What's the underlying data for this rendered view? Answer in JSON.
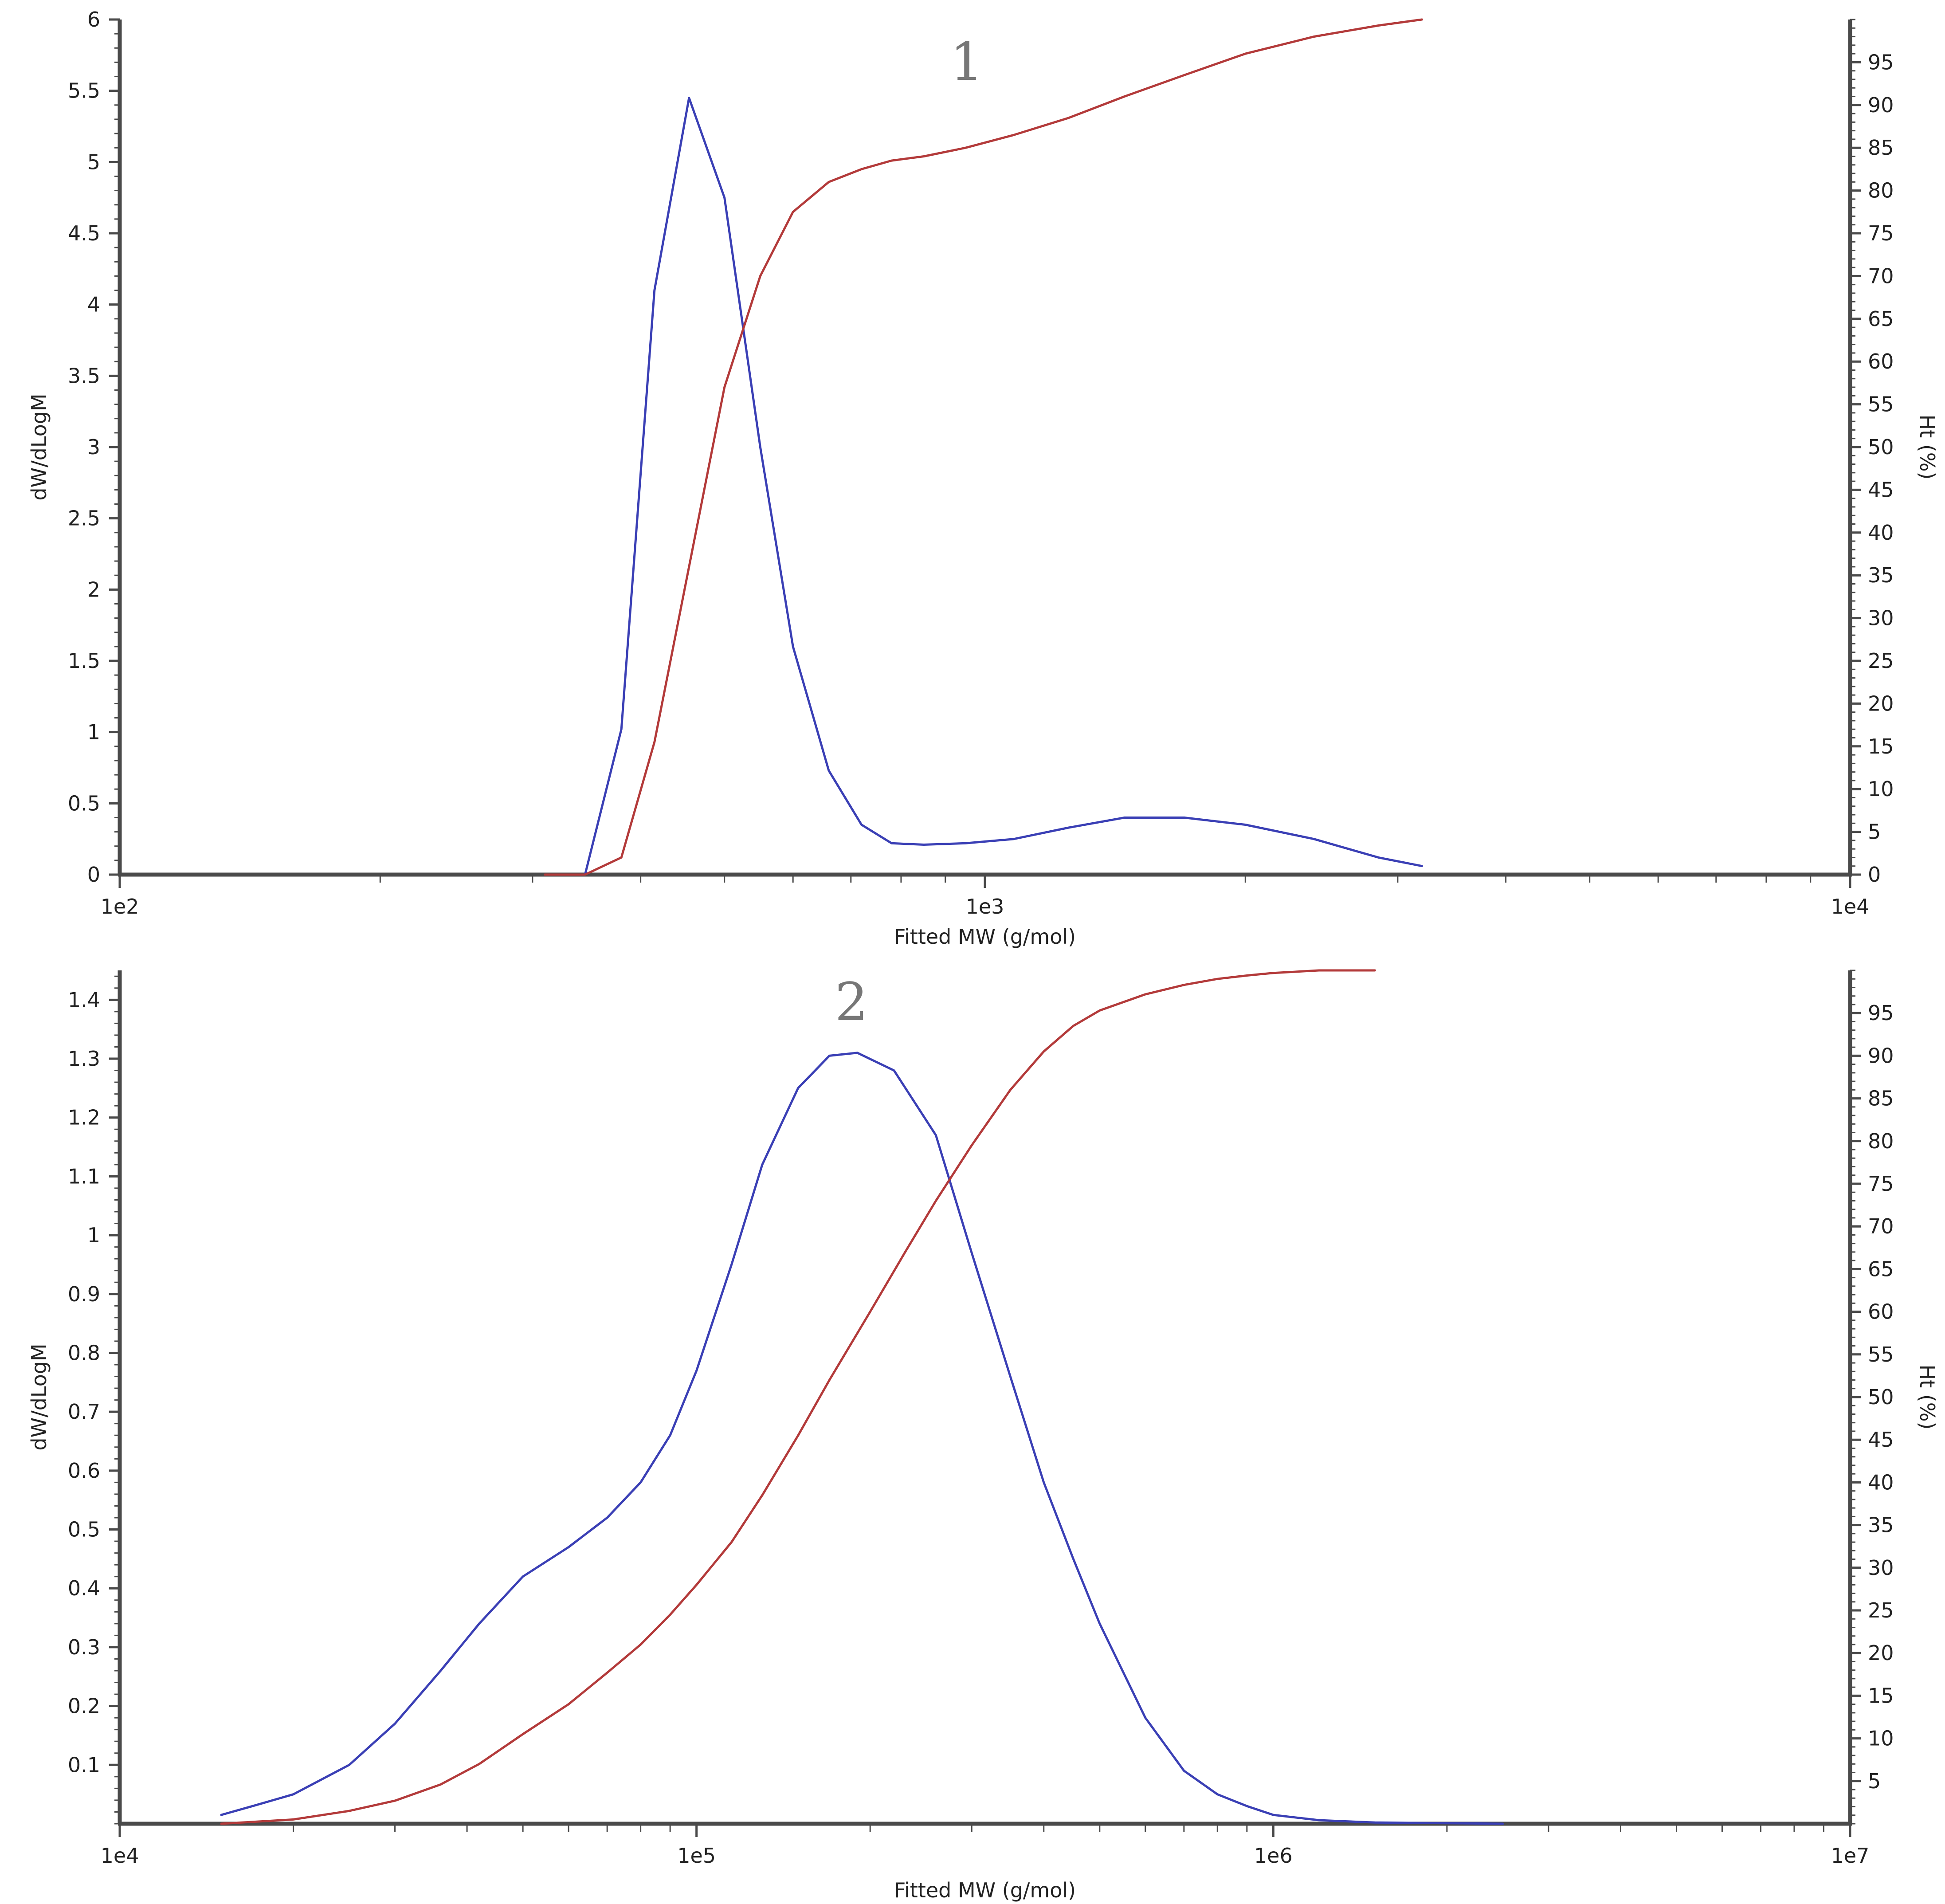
{
  "chart_data": [
    {
      "type": "line",
      "panel_label": "1",
      "xlabel": "Fitted MW (g/mol)",
      "ylabel_left": "dW/dLogM",
      "ylabel_right": "Ht (%)",
      "x_scale": "log",
      "xlim": [
        100,
        10000
      ],
      "ylim_left": [
        0,
        6
      ],
      "ylim_right": [
        0,
        100
      ],
      "x_tick_values": [
        100,
        1000,
        10000
      ],
      "x_tick_labels": [
        "1e2",
        "1e3",
        "1e4"
      ],
      "left_ticks": [
        0,
        0.5,
        1,
        1.5,
        2,
        2.5,
        3,
        3.5,
        4,
        4.5,
        5,
        5.5,
        6
      ],
      "left_tick_labels": [
        "0",
        "0.5",
        "1",
        "1.5",
        "2",
        "2.5",
        "3",
        "3.5",
        "4",
        "4.5",
        "5",
        "5.5",
        "6"
      ],
      "right_ticks": [
        0,
        5,
        10,
        15,
        20,
        25,
        30,
        35,
        40,
        45,
        50,
        55,
        60,
        65,
        70,
        75,
        80,
        85,
        90,
        95
      ],
      "right_tick_labels": [
        "0",
        "5",
        "10",
        "15",
        "20",
        "25",
        "30",
        "35",
        "40",
        "45",
        "50",
        "55",
        "60",
        "65",
        "70",
        "75",
        "80",
        "85",
        "90",
        "95"
      ],
      "grid": false,
      "series": [
        {
          "axis": "left",
          "color": "#3a3fb5",
          "x": [
            345,
            380,
            415,
            455,
            500,
            550,
            600,
            660,
            720,
            780,
            850,
            950,
            1080,
            1250,
            1450,
            1700,
            2000,
            2400,
            2850,
            3200
          ],
          "y": [
            0,
            1.02,
            4.1,
            5.45,
            4.75,
            3.0,
            1.6,
            0.73,
            0.35,
            0.22,
            0.21,
            0.22,
            0.25,
            0.33,
            0.4,
            0.4,
            0.35,
            0.25,
            0.12,
            0.06
          ]
        },
        {
          "axis": "right",
          "color": "#b33a3a",
          "x": [
            310,
            345,
            380,
            415,
            455,
            500,
            550,
            600,
            660,
            720,
            780,
            850,
            950,
            1080,
            1250,
            1450,
            1700,
            2000,
            2400,
            2850,
            3200
          ],
          "y": [
            0,
            0,
            2,
            15.5,
            36,
            57,
            70,
            77.5,
            81,
            82.5,
            83.5,
            84,
            85,
            86.5,
            88.5,
            91,
            93.5,
            96,
            98,
            99.3,
            100
          ]
        }
      ]
    },
    {
      "type": "line",
      "panel_label": "2",
      "xlabel": "Fitted MW (g/mol)",
      "ylabel_left": "dW/dLogM",
      "ylabel_right": "Ht (%)",
      "x_scale": "log",
      "xlim": [
        10000,
        10000000
      ],
      "ylim_left": [
        0,
        1.45
      ],
      "ylim_right": [
        0,
        100
      ],
      "x_tick_values": [
        10000,
        100000,
        1000000,
        10000000
      ],
      "x_tick_labels": [
        "1e4",
        "1e5",
        "1e6",
        "1e7"
      ],
      "left_ticks": [
        0.1,
        0.2,
        0.3,
        0.4,
        0.5,
        0.6,
        0.7,
        0.8,
        0.9,
        1,
        1.1,
        1.2,
        1.3,
        1.4
      ],
      "left_tick_labels": [
        "0.1",
        "0.2",
        "0.3",
        "0.4",
        "0.5",
        "0.6",
        "0.7",
        "0.8",
        "0.9",
        "1",
        "1.1",
        "1.2",
        "1.3",
        "1.4"
      ],
      "right_ticks": [
        5,
        10,
        15,
        20,
        25,
        30,
        35,
        40,
        45,
        50,
        55,
        60,
        65,
        70,
        75,
        80,
        85,
        90,
        95
      ],
      "right_tick_labels": [
        "5",
        "10",
        "15",
        "20",
        "25",
        "30",
        "35",
        "40",
        "45",
        "50",
        "55",
        "60",
        "65",
        "70",
        "75",
        "80",
        "85",
        "90",
        "95"
      ],
      "grid": false,
      "series": [
        {
          "axis": "left",
          "color": "#3a3fb5",
          "x": [
            15000,
            17000,
            20000,
            25000,
            30000,
            36000,
            42000,
            50000,
            60000,
            70000,
            80000,
            90000,
            100000,
            115000,
            130000,
            150000,
            170000,
            190000,
            220000,
            260000,
            300000,
            350000,
            400000,
            450000,
            500000,
            600000,
            700000,
            800000,
            900000,
            1000000,
            1200000,
            1500000,
            2000000,
            2500000
          ],
          "y": [
            0.015,
            0.03,
            0.05,
            0.1,
            0.17,
            0.26,
            0.34,
            0.42,
            0.47,
            0.52,
            0.58,
            0.66,
            0.77,
            0.95,
            1.12,
            1.25,
            1.305,
            1.31,
            1.28,
            1.17,
            0.97,
            0.76,
            0.58,
            0.45,
            0.34,
            0.18,
            0.09,
            0.05,
            0.03,
            0.015,
            0.006,
            0.002,
            0.001,
            0
          ]
        },
        {
          "axis": "right",
          "color": "#b33a3a",
          "x": [
            15000,
            20000,
            25000,
            30000,
            36000,
            42000,
            50000,
            60000,
            70000,
            80000,
            90000,
            100000,
            115000,
            130000,
            150000,
            170000,
            200000,
            230000,
            260000,
            300000,
            350000,
            400000,
            450000,
            500000,
            600000,
            700000,
            800000,
            900000,
            1000000,
            1200000,
            1500000
          ],
          "y": [
            0,
            0.5,
            1.5,
            2.7,
            4.6,
            7,
            10.5,
            14,
            17.7,
            21,
            24.5,
            28,
            33,
            38.5,
            45.5,
            52,
            60,
            67,
            73,
            79.5,
            86,
            90.5,
            93.5,
            95.3,
            97.2,
            98.3,
            99,
            99.4,
            99.7,
            100,
            100
          ]
        }
      ]
    }
  ]
}
